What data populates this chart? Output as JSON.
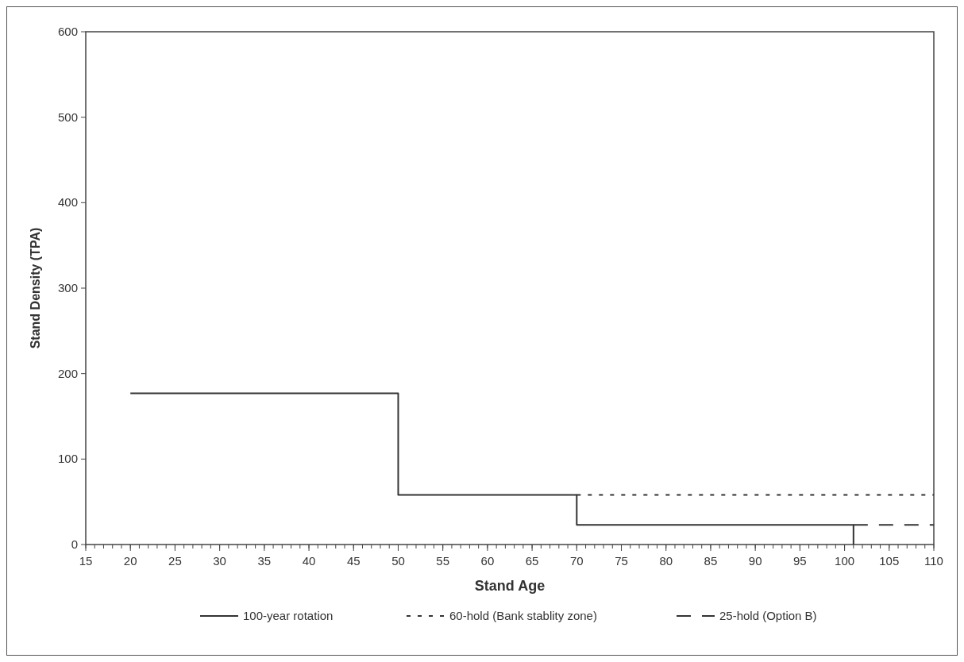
{
  "chart_data": {
    "type": "line",
    "xlabel": "Stand Age",
    "ylabel": "Stand Density (TPA)",
    "xlim": [
      15,
      110
    ],
    "xticks": [
      15,
      20,
      25,
      30,
      35,
      40,
      45,
      50,
      55,
      60,
      65,
      70,
      75,
      80,
      85,
      90,
      95,
      100,
      105,
      110
    ],
    "ylim": [
      0,
      600
    ],
    "yticks": [
      0,
      100,
      200,
      300,
      400,
      500,
      600
    ],
    "series": [
      {
        "name": "100-year rotation",
        "color": "#333333",
        "line_style": "solid",
        "x": [
          20,
          50,
          50,
          70,
          70,
          101,
          101
        ],
        "values": [
          177,
          177,
          58,
          58,
          23,
          23,
          0
        ]
      },
      {
        "name": "60-hold (Bank stablity zone)",
        "color": "#333333",
        "line_style": "dotted",
        "x": [
          70,
          110
        ],
        "values": [
          58,
          58
        ]
      },
      {
        "name": "25-hold (Option B)",
        "color": "#333333",
        "line_style": "dashed",
        "x": [
          101,
          110
        ],
        "values": [
          23,
          23
        ]
      }
    ],
    "grid": false,
    "legend": "bottom",
    "marker": "none"
  }
}
